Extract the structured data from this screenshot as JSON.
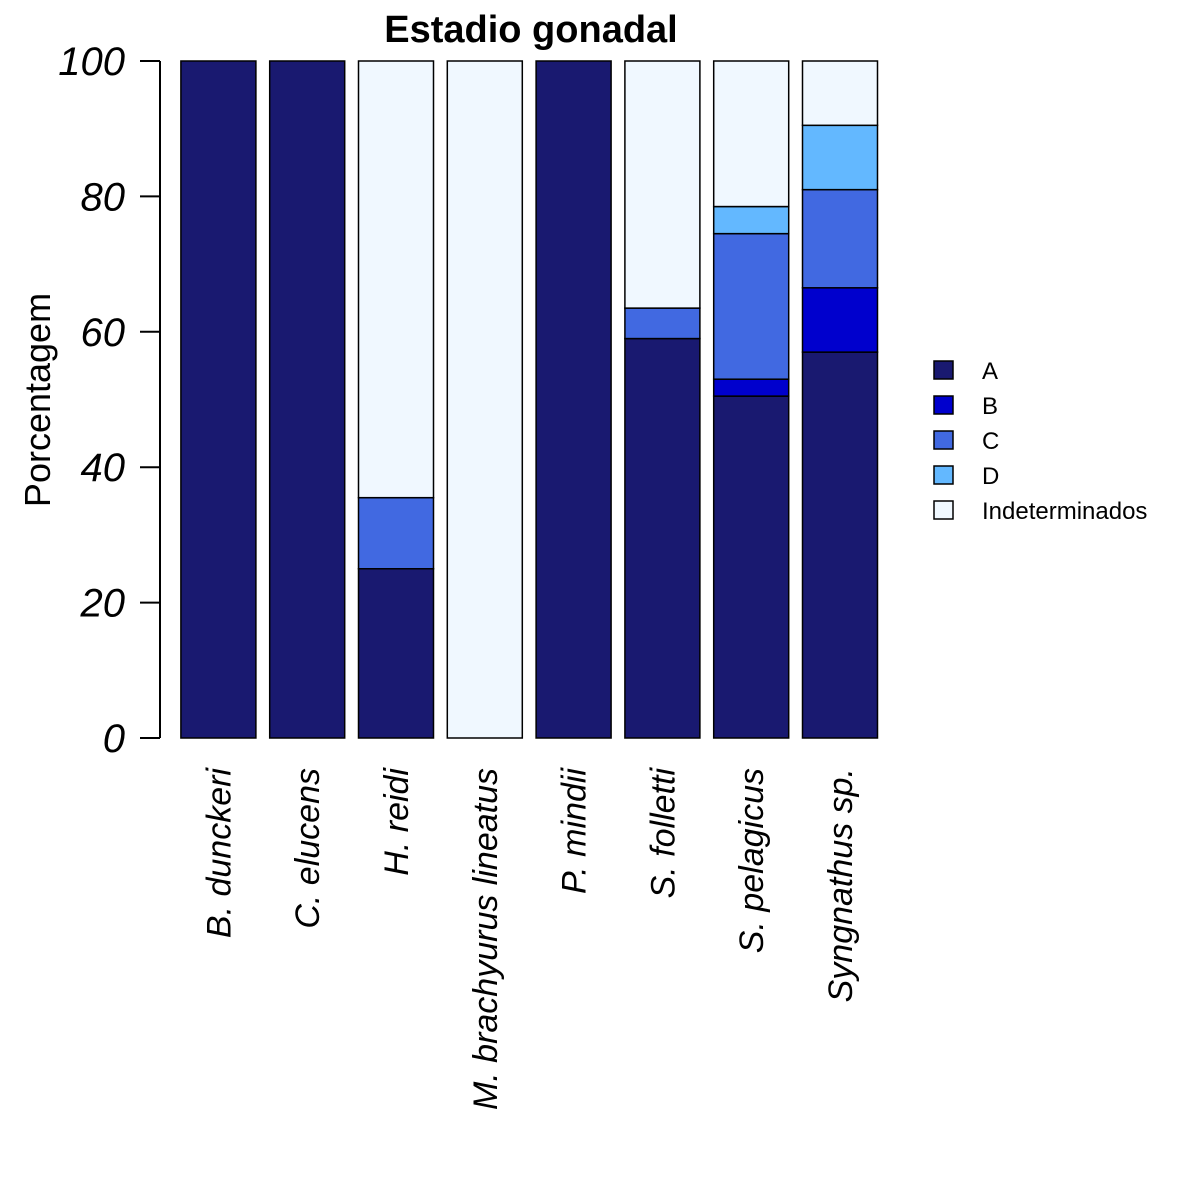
{
  "chart_data": {
    "type": "stacked_bar",
    "title": "Estadio gonadal",
    "y_label": "Porcentagem",
    "categories": [
      "B. dunckeri",
      "C. elucens",
      "H. reidi",
      "M. brachyurus lineatus",
      "P. mindii",
      "S. folletti",
      "S. pelagicus",
      "Syngnathus sp."
    ],
    "series": [
      {
        "name": "A",
        "color": "#191970",
        "values": [
          100,
          100,
          25,
          0,
          100,
          59,
          50.5,
          57
        ]
      },
      {
        "name": "B",
        "color": "#0000cd",
        "values": [
          0,
          0,
          0,
          0,
          0,
          0,
          2.5,
          9.5
        ]
      },
      {
        "name": "C",
        "color": "#4169e1",
        "values": [
          0,
          0,
          10.5,
          0,
          0,
          4.5,
          21.5,
          14.5
        ]
      },
      {
        "name": "D",
        "color": "#63b8ff",
        "values": [
          0,
          0,
          0,
          0,
          0,
          0,
          4,
          9.5
        ]
      },
      {
        "name": "Indeterminados",
        "color": "#f0f8ff",
        "values": [
          0,
          0,
          64.5,
          100,
          0,
          36.5,
          21.5,
          9.5
        ]
      }
    ],
    "ylim": [
      0,
      100
    ],
    "yticks": [
      0,
      20,
      40,
      60,
      80,
      100
    ],
    "legend": "right"
  }
}
